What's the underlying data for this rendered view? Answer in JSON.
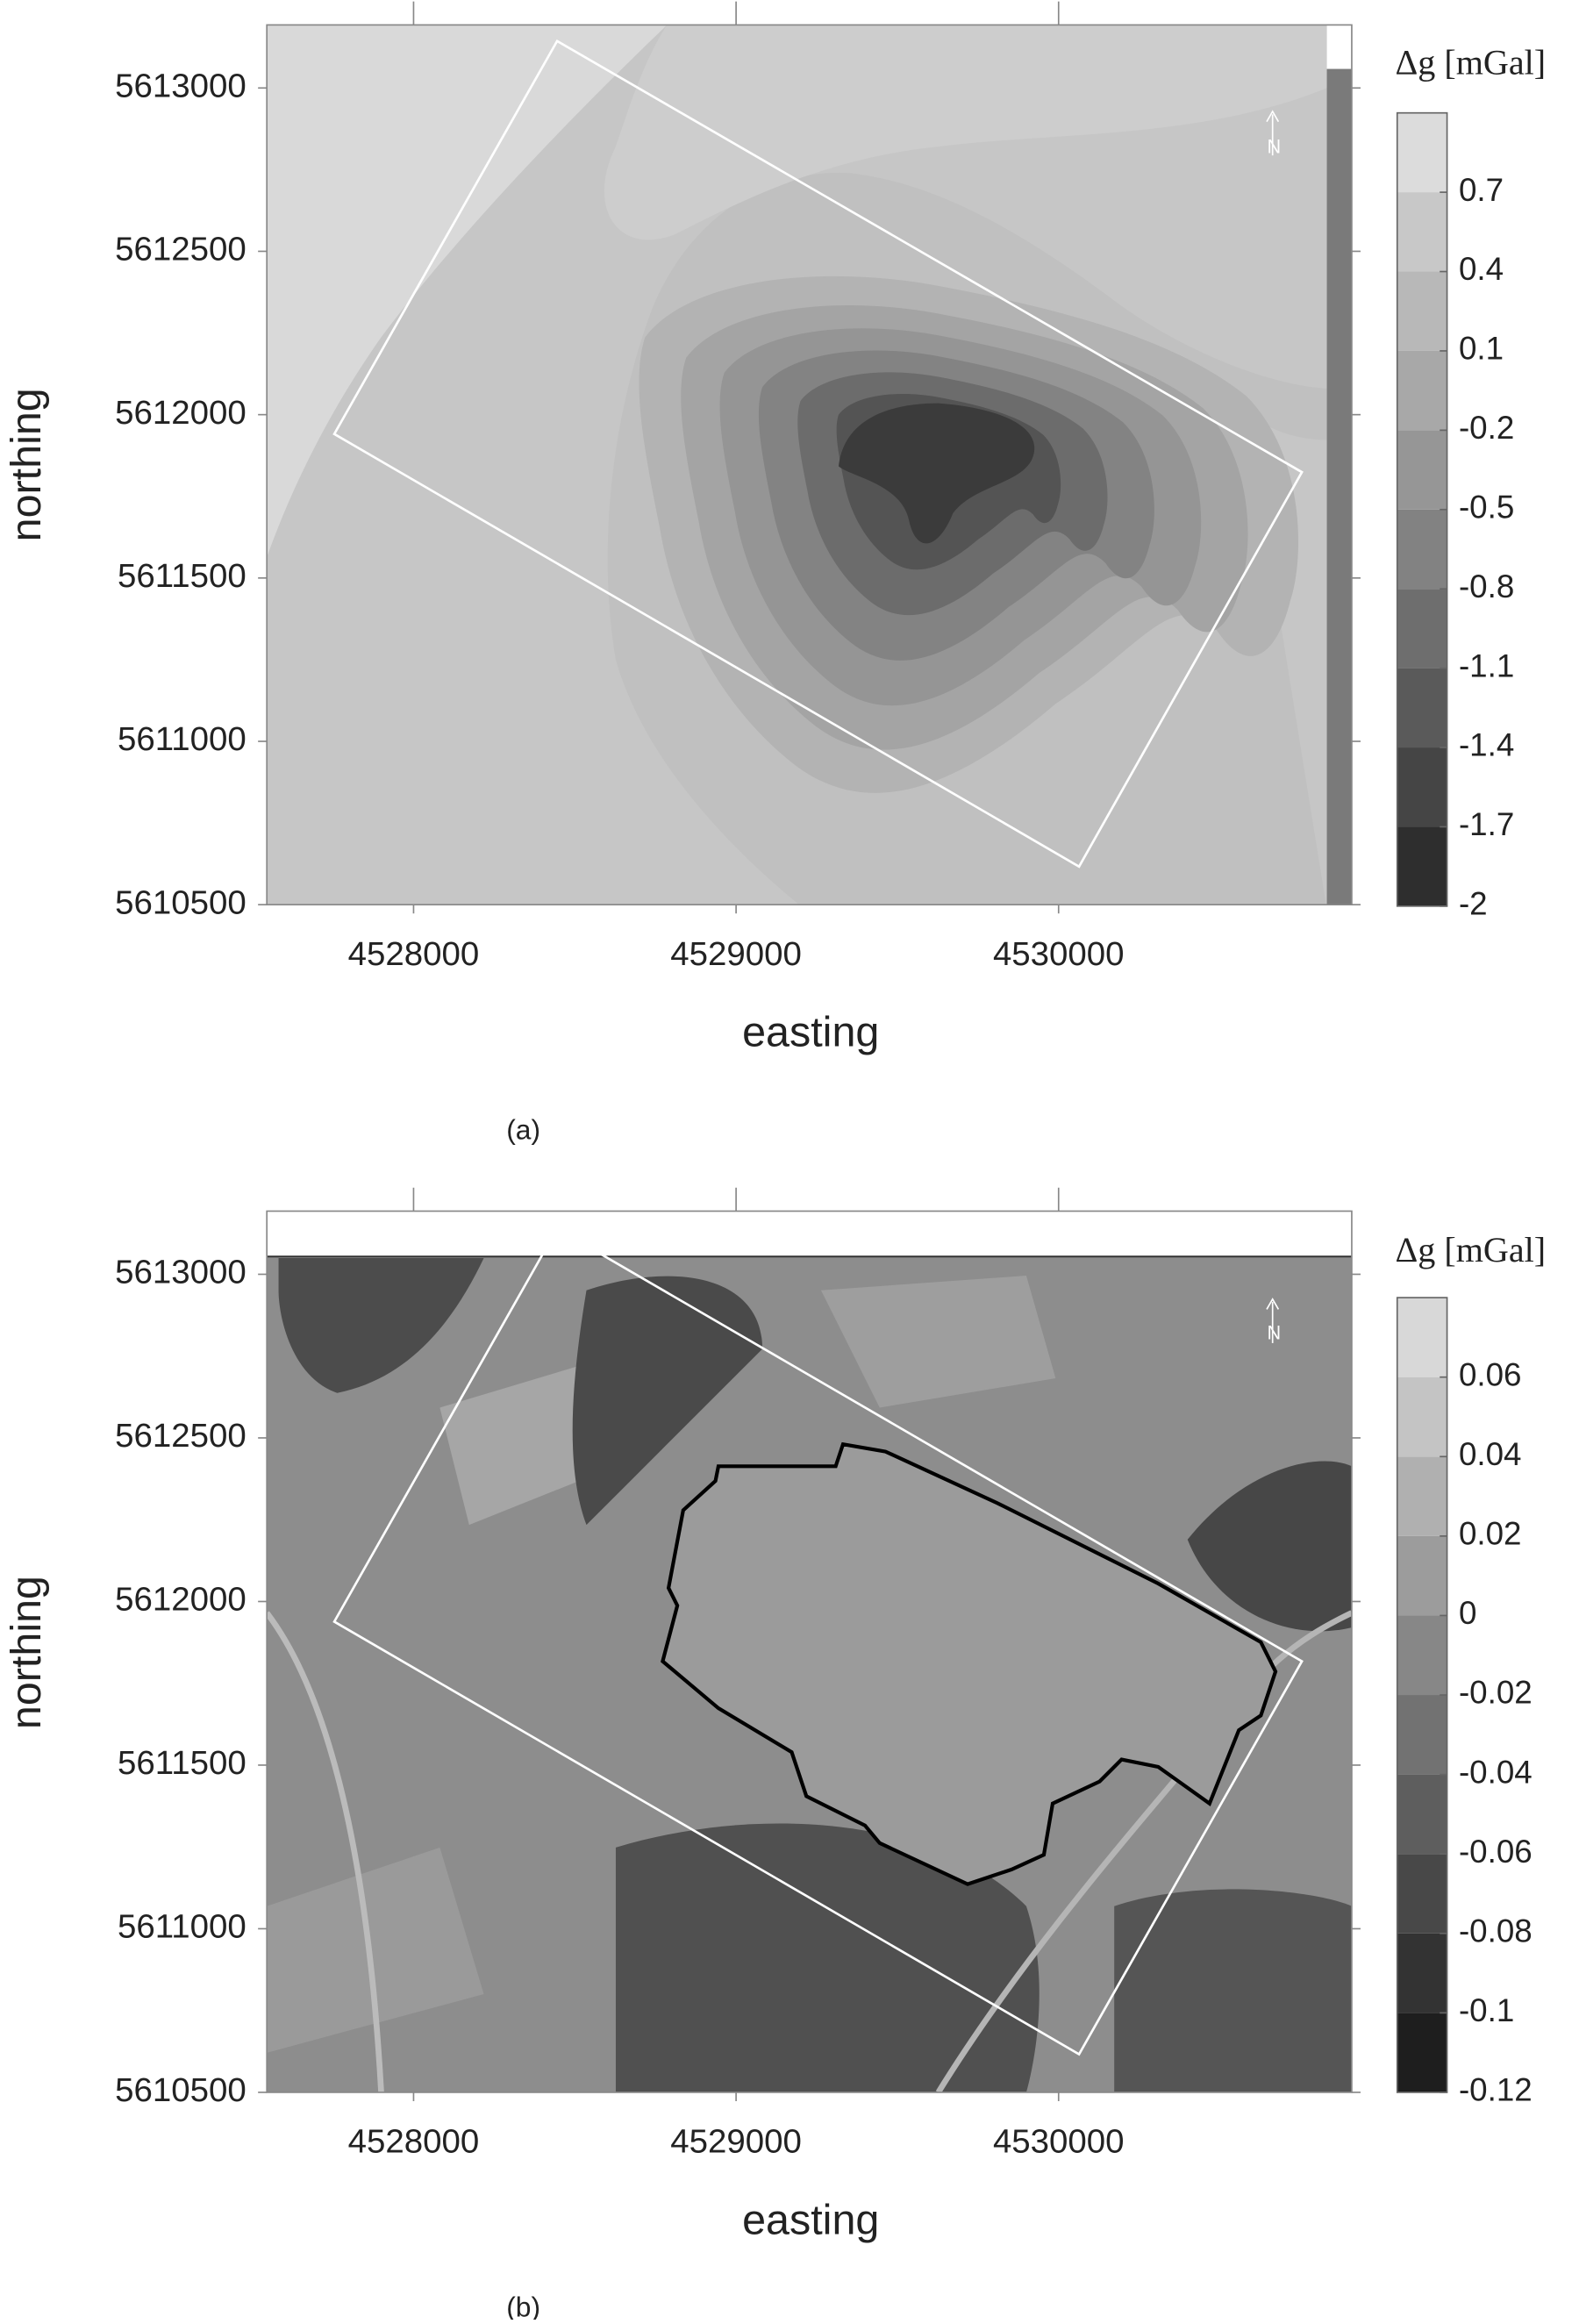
{
  "chart_data": [
    {
      "type": "contour",
      "panel": "(a)",
      "x_label": "easting",
      "y_label": "northing",
      "colorbar_title": "Δg [mGal]",
      "north_label": "N",
      "xlim": [
        4527545,
        4530909
      ],
      "xticks": [
        4528000,
        4529000,
        4530000
      ],
      "ylim": [
        5610500,
        5613193
      ],
      "yticks": [
        5610500,
        5611000,
        5611500,
        5612000,
        5612500,
        5613000
      ],
      "clim": [
        -2,
        1
      ],
      "cticks": [
        -2,
        -1.7,
        -1.4,
        -1.1,
        -0.8,
        -0.5,
        -0.2,
        0.1,
        0.4,
        0.7
      ],
      "colors": [
        "#2e2e2e",
        "#454545",
        "#5a5a5a",
        "#6e6e6e",
        "#828282",
        "#969696",
        "#a8a8a8",
        "#b8b8b8",
        "#c8c8c8",
        "#dcdcdc"
      ]
    },
    {
      "type": "contour",
      "panel": "(b)",
      "x_label": "easting",
      "y_label": "northing",
      "colorbar_title": "Δg [mGal]",
      "north_label": "N",
      "xlim": [
        4527545,
        4530909
      ],
      "xticks": [
        4528000,
        4529000,
        4530000
      ],
      "ylim": [
        5610500,
        5613193
      ],
      "yticks": [
        5610500,
        5611000,
        5611500,
        5612000,
        5612500,
        5613000
      ],
      "clim": [
        -0.12,
        0.08
      ],
      "cticks": [
        -0.12,
        -0.1,
        -0.08,
        -0.06,
        -0.04,
        -0.02,
        0,
        0.02,
        0.04,
        0.06
      ],
      "colors": [
        "#1e1e1e",
        "#333333",
        "#484848",
        "#5e5e5e",
        "#727272",
        "#878787",
        "#9c9c9c",
        "#b0b0b0",
        "#c4c4c4",
        "#d8d8d8"
      ]
    }
  ]
}
